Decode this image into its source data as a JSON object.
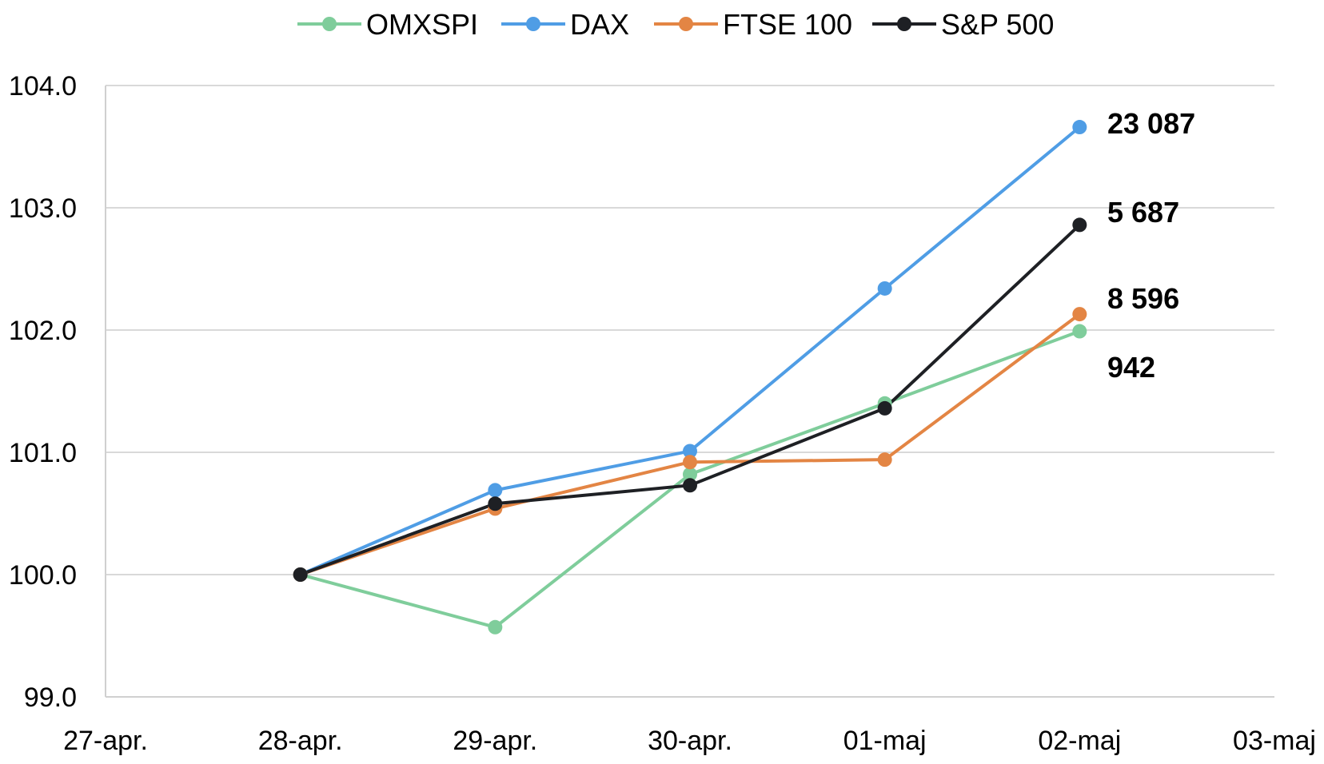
{
  "chart_data": {
    "type": "line",
    "x": [
      "27-apr.",
      "28-apr.",
      "29-apr.",
      "30-apr.",
      "01-maj",
      "02-maj",
      "03-maj"
    ],
    "ylim": [
      99.0,
      104.0
    ],
    "yticks": [
      "99.0",
      "100.0",
      "101.0",
      "102.0",
      "103.0",
      "104.0"
    ],
    "grid": true,
    "legend_position": "top",
    "series": [
      {
        "name": "OMXSPI",
        "color": "#7fcd9b",
        "values": [
          null,
          100.0,
          99.57,
          100.82,
          101.4,
          101.99,
          null
        ],
        "end_label": "942"
      },
      {
        "name": "DAX",
        "color": "#4f9de5",
        "values": [
          null,
          100.0,
          100.69,
          101.01,
          102.34,
          103.66,
          null
        ],
        "end_label": "23 087"
      },
      {
        "name": "FTSE 100",
        "color": "#e38544",
        "values": [
          null,
          100.0,
          100.54,
          100.92,
          100.94,
          102.13,
          null
        ],
        "end_label": "8 596"
      },
      {
        "name": "S&P 500",
        "color": "#1e2024",
        "values": [
          null,
          100.0,
          100.58,
          100.73,
          101.36,
          102.86,
          null
        ],
        "end_label": "5 687"
      }
    ]
  }
}
